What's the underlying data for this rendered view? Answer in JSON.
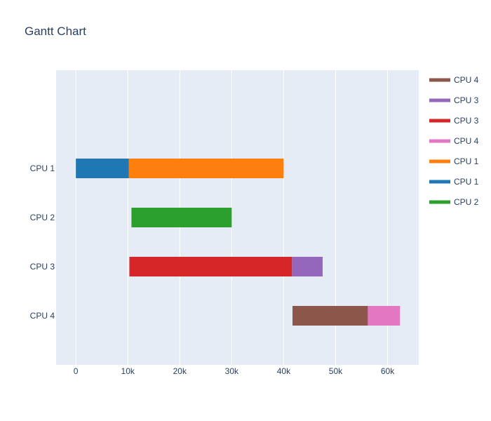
{
  "chart_data": {
    "type": "bar",
    "orientation": "horizontal-gantt",
    "title": "Gantt Chart",
    "xlabel": "",
    "ylabel": "",
    "xlim": [
      -3800,
      66000
    ],
    "categories": [
      "CPU 1",
      "CPU 2",
      "CPU 3",
      "CPU 4"
    ],
    "x_ticks": [
      {
        "value": 0,
        "label": "0"
      },
      {
        "value": 10000,
        "label": "10k"
      },
      {
        "value": 20000,
        "label": "20k"
      },
      {
        "value": 30000,
        "label": "30k"
      },
      {
        "value": 40000,
        "label": "40k"
      },
      {
        "value": 50000,
        "label": "50k"
      },
      {
        "value": 60000,
        "label": "60k"
      }
    ],
    "grid": true,
    "legend_position": "right",
    "series": [
      {
        "name": "CPU 4",
        "category": "CPU 4",
        "start": 41700,
        "end": 56200,
        "color": "#8c564b"
      },
      {
        "name": "CPU 3",
        "category": "CPU 3",
        "start": 41600,
        "end": 47500,
        "color": "#9467bd"
      },
      {
        "name": "CPU 3",
        "category": "CPU 3",
        "start": 10300,
        "end": 41600,
        "color": "#d62728"
      },
      {
        "name": "CPU 4",
        "category": "CPU 4",
        "start": 56200,
        "end": 62400,
        "color": "#e377c2"
      },
      {
        "name": "CPU 1",
        "category": "CPU 1",
        "start": 10200,
        "end": 40000,
        "color": "#ff7f0e"
      },
      {
        "name": "CPU 1",
        "category": "CPU 1",
        "start": 0,
        "end": 10200,
        "color": "#1f77b4"
      },
      {
        "name": "CPU 2",
        "category": "CPU 2",
        "start": 10700,
        "end": 30000,
        "color": "#2ca02c"
      }
    ]
  }
}
